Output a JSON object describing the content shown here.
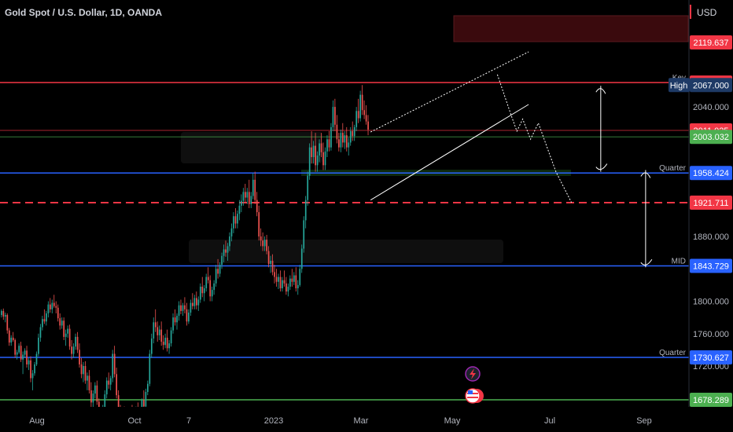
{
  "header": {
    "title": "Gold Spot / U.S. Dollar, 1D, OANDA",
    "currency": "USD"
  },
  "chart_data": {
    "type": "candlestick",
    "title": "Gold Spot / U.S. Dollar, 1D, OANDA",
    "ylim": [
      1660,
      2180
    ],
    "y_ticks": [
      {
        "value": 2040,
        "label": "2040.000"
      },
      {
        "value": 1880,
        "label": "1880.000"
      },
      {
        "value": 1800,
        "label": "1800.000"
      },
      {
        "value": 1760,
        "label": "1760.000"
      },
      {
        "value": 1720,
        "label": "1720.000"
      }
    ],
    "x_ticks": [
      "Aug",
      "Oct",
      "7",
      "2023",
      "Mar",
      "May",
      "Jul",
      "Sep"
    ],
    "levels": [
      {
        "price": 2070.038,
        "label": "Key",
        "badge": "2070.038",
        "color": "#f23645",
        "style": "solid"
      },
      {
        "price": 2011.025,
        "label": "",
        "badge": "2011.025",
        "color": "#f23645",
        "style": "thin"
      },
      {
        "price": 2003.032,
        "label": "",
        "badge": "2003.032",
        "color": "#4caf50",
        "style": "thin"
      },
      {
        "price": 1958.424,
        "label": "Quarter",
        "badge": "1958.424",
        "color": "#2962ff",
        "style": "solid"
      },
      {
        "price": 1921.711,
        "label": "",
        "badge": "1921.711",
        "color": "#f23645",
        "style": "dashed"
      },
      {
        "price": 1843.729,
        "label": "MID",
        "badge": "1843.729",
        "color": "#2962ff",
        "style": "solid"
      },
      {
        "price": 1730.627,
        "label": "Quarter",
        "badge": "1730.627",
        "color": "#2962ff",
        "style": "solid"
      },
      {
        "price": 1678.289,
        "label": "",
        "badge": "1678.289",
        "color": "#4caf50",
        "style": "solid"
      }
    ],
    "extra_badges": [
      {
        "price": 2119.637,
        "label": "2119.637",
        "color": "#f23645"
      },
      {
        "price": 2067.0,
        "label": "2067.000",
        "color": "#1e3a66",
        "tag": "High"
      }
    ],
    "colors": {
      "up": "#26a69a",
      "down": "#ef5350",
      "background": "#000000"
    },
    "candles": [
      [
        1783,
        1790,
        1780,
        1788
      ],
      [
        1788,
        1791,
        1777,
        1781
      ],
      [
        1781,
        1786,
        1774,
        1783
      ],
      [
        1783,
        1785,
        1760,
        1764
      ],
      [
        1764,
        1767,
        1745,
        1749
      ],
      [
        1749,
        1758,
        1745,
        1755
      ],
      [
        1755,
        1762,
        1750,
        1752
      ],
      [
        1752,
        1754,
        1730,
        1734
      ],
      [
        1734,
        1740,
        1728,
        1737
      ],
      [
        1737,
        1748,
        1735,
        1745
      ],
      [
        1745,
        1750,
        1725,
        1728
      ],
      [
        1728,
        1738,
        1710,
        1734
      ],
      [
        1734,
        1742,
        1730,
        1739
      ],
      [
        1739,
        1745,
        1718,
        1722
      ],
      [
        1722,
        1730,
        1715,
        1727
      ],
      [
        1727,
        1732,
        1700,
        1705
      ],
      [
        1705,
        1715,
        1690,
        1711
      ],
      [
        1711,
        1725,
        1708,
        1722
      ],
      [
        1722,
        1738,
        1720,
        1735
      ],
      [
        1735,
        1760,
        1732,
        1755
      ],
      [
        1755,
        1772,
        1750,
        1768
      ],
      [
        1768,
        1782,
        1764,
        1778
      ],
      [
        1778,
        1790,
        1772,
        1775
      ],
      [
        1775,
        1788,
        1770,
        1785
      ],
      [
        1785,
        1800,
        1780,
        1796
      ],
      [
        1796,
        1804,
        1786,
        1790
      ],
      [
        1790,
        1802,
        1785,
        1798
      ],
      [
        1798,
        1808,
        1792,
        1794
      ],
      [
        1794,
        1800,
        1785,
        1792
      ],
      [
        1792,
        1796,
        1775,
        1779
      ],
      [
        1779,
        1785,
        1765,
        1770
      ],
      [
        1770,
        1780,
        1766,
        1776
      ],
      [
        1776,
        1780,
        1752,
        1756
      ],
      [
        1756,
        1765,
        1745,
        1760
      ],
      [
        1760,
        1770,
        1755,
        1766
      ],
      [
        1766,
        1771,
        1740,
        1744
      ],
      [
        1744,
        1752,
        1728,
        1735
      ],
      [
        1735,
        1748,
        1730,
        1744
      ],
      [
        1744,
        1760,
        1740,
        1756
      ],
      [
        1756,
        1762,
        1736,
        1740
      ],
      [
        1740,
        1748,
        1718,
        1722
      ],
      [
        1722,
        1730,
        1705,
        1710
      ],
      [
        1710,
        1725,
        1700,
        1720
      ],
      [
        1720,
        1726,
        1698,
        1702
      ],
      [
        1702,
        1712,
        1690,
        1708
      ],
      [
        1708,
        1715,
        1686,
        1690
      ],
      [
        1690,
        1700,
        1668,
        1675
      ],
      [
        1675,
        1690,
        1660,
        1686
      ],
      [
        1686,
        1700,
        1680,
        1696
      ],
      [
        1696,
        1702,
        1672,
        1676
      ],
      [
        1676,
        1680,
        1660,
        1664
      ],
      [
        1664,
        1668,
        1655,
        1660
      ],
      [
        1660,
        1672,
        1650,
        1668
      ],
      [
        1668,
        1690,
        1665,
        1685
      ],
      [
        1685,
        1706,
        1680,
        1702
      ],
      [
        1702,
        1712,
        1692,
        1697
      ],
      [
        1697,
        1708,
        1690,
        1705
      ],
      [
        1705,
        1740,
        1700,
        1735
      ],
      [
        1735,
        1745,
        1706,
        1710
      ],
      [
        1710,
        1718,
        1680,
        1684
      ],
      [
        1684,
        1690,
        1660,
        1665
      ],
      [
        1665,
        1672,
        1648,
        1654
      ],
      [
        1654,
        1668,
        1640,
        1662
      ],
      [
        1662,
        1670,
        1650,
        1656
      ],
      [
        1656,
        1664,
        1640,
        1648
      ],
      [
        1648,
        1660,
        1642,
        1655
      ],
      [
        1655,
        1668,
        1650,
        1664
      ],
      [
        1664,
        1672,
        1650,
        1657
      ],
      [
        1657,
        1666,
        1645,
        1660
      ],
      [
        1660,
        1670,
        1655,
        1667
      ],
      [
        1667,
        1675,
        1650,
        1655
      ],
      [
        1655,
        1665,
        1645,
        1660
      ],
      [
        1660,
        1680,
        1658,
        1678
      ],
      [
        1678,
        1690,
        1666,
        1670
      ],
      [
        1670,
        1692,
        1668,
        1688
      ],
      [
        1688,
        1702,
        1684,
        1698
      ],
      [
        1698,
        1740,
        1695,
        1735
      ],
      [
        1735,
        1760,
        1730,
        1754
      ],
      [
        1754,
        1780,
        1748,
        1774
      ],
      [
        1774,
        1790,
        1762,
        1768
      ],
      [
        1768,
        1775,
        1750,
        1758
      ],
      [
        1758,
        1770,
        1752,
        1765
      ],
      [
        1765,
        1775,
        1745,
        1750
      ],
      [
        1750,
        1758,
        1740,
        1746
      ],
      [
        1746,
        1760,
        1742,
        1755
      ],
      [
        1755,
        1765,
        1738,
        1742
      ],
      [
        1742,
        1752,
        1735,
        1748
      ],
      [
        1748,
        1768,
        1744,
        1764
      ],
      [
        1764,
        1785,
        1760,
        1780
      ],
      [
        1780,
        1790,
        1770,
        1774
      ],
      [
        1774,
        1785,
        1765,
        1782
      ],
      [
        1782,
        1800,
        1776,
        1795
      ],
      [
        1795,
        1802,
        1784,
        1788
      ],
      [
        1788,
        1798,
        1782,
        1795
      ],
      [
        1795,
        1805,
        1785,
        1790
      ],
      [
        1790,
        1798,
        1770,
        1775
      ],
      [
        1775,
        1790,
        1772,
        1786
      ],
      [
        1786,
        1802,
        1782,
        1798
      ],
      [
        1798,
        1810,
        1790,
        1794
      ],
      [
        1794,
        1808,
        1790,
        1804
      ],
      [
        1804,
        1812,
        1790,
        1795
      ],
      [
        1795,
        1806,
        1788,
        1802
      ],
      [
        1802,
        1822,
        1798,
        1818
      ],
      [
        1818,
        1830,
        1805,
        1810
      ],
      [
        1810,
        1820,
        1800,
        1816
      ],
      [
        1816,
        1834,
        1812,
        1830
      ],
      [
        1830,
        1842,
        1822,
        1826
      ],
      [
        1826,
        1832,
        1800,
        1806
      ],
      [
        1806,
        1818,
        1800,
        1814
      ],
      [
        1814,
        1826,
        1808,
        1822
      ],
      [
        1822,
        1845,
        1818,
        1840
      ],
      [
        1840,
        1852,
        1828,
        1834
      ],
      [
        1834,
        1848,
        1830,
        1845
      ],
      [
        1845,
        1860,
        1840,
        1856
      ],
      [
        1856,
        1870,
        1848,
        1864
      ],
      [
        1864,
        1875,
        1855,
        1860
      ],
      [
        1860,
        1872,
        1850,
        1868
      ],
      [
        1868,
        1885,
        1862,
        1880
      ],
      [
        1880,
        1896,
        1874,
        1890
      ],
      [
        1890,
        1910,
        1884,
        1905
      ],
      [
        1905,
        1915,
        1890,
        1896
      ],
      [
        1896,
        1912,
        1890,
        1908
      ],
      [
        1908,
        1925,
        1900,
        1918
      ],
      [
        1918,
        1932,
        1910,
        1924
      ],
      [
        1924,
        1940,
        1918,
        1935
      ],
      [
        1935,
        1945,
        1922,
        1928
      ],
      [
        1928,
        1940,
        1920,
        1935
      ],
      [
        1935,
        1950,
        1915,
        1920
      ],
      [
        1920,
        1935,
        1915,
        1930
      ],
      [
        1930,
        1958,
        1926,
        1950
      ],
      [
        1950,
        1960,
        1920,
        1925
      ],
      [
        1925,
        1935,
        1905,
        1910
      ],
      [
        1910,
        1918,
        1875,
        1880
      ],
      [
        1880,
        1890,
        1868,
        1875
      ],
      [
        1875,
        1885,
        1862,
        1868
      ],
      [
        1868,
        1880,
        1862,
        1876
      ],
      [
        1876,
        1882,
        1858,
        1862
      ],
      [
        1862,
        1868,
        1842,
        1846
      ],
      [
        1846,
        1856,
        1835,
        1850
      ],
      [
        1850,
        1858,
        1832,
        1836
      ],
      [
        1836,
        1845,
        1822,
        1830
      ],
      [
        1830,
        1840,
        1818,
        1824
      ],
      [
        1824,
        1834,
        1815,
        1830
      ],
      [
        1830,
        1838,
        1812,
        1816
      ],
      [
        1816,
        1830,
        1812,
        1826
      ],
      [
        1826,
        1838,
        1818,
        1822
      ],
      [
        1822,
        1830,
        1808,
        1812
      ],
      [
        1812,
        1822,
        1806,
        1818
      ],
      [
        1818,
        1832,
        1814,
        1828
      ],
      [
        1828,
        1840,
        1818,
        1824
      ],
      [
        1824,
        1836,
        1820,
        1832
      ],
      [
        1832,
        1842,
        1812,
        1816
      ],
      [
        1816,
        1826,
        1808,
        1820
      ],
      [
        1820,
        1845,
        1818,
        1840
      ],
      [
        1840,
        1870,
        1835,
        1865
      ],
      [
        1865,
        1905,
        1860,
        1900
      ],
      [
        1900,
        1930,
        1890,
        1925
      ],
      [
        1925,
        1960,
        1918,
        1955
      ],
      [
        1955,
        1995,
        1950,
        1990
      ],
      [
        1990,
        2010,
        1970,
        1978
      ],
      [
        1978,
        1998,
        1970,
        1992
      ],
      [
        1992,
        2008,
        1960,
        1968
      ],
      [
        1968,
        1985,
        1960,
        1980
      ],
      [
        1980,
        2000,
        1972,
        1995
      ],
      [
        1995,
        2008,
        1978,
        1984
      ],
      [
        1984,
        1996,
        1962,
        1968
      ],
      [
        1968,
        1990,
        1962,
        1985
      ],
      [
        1985,
        2005,
        1978,
        2000
      ],
      [
        2000,
        2010,
        1985,
        1990
      ],
      [
        1990,
        2020,
        1986,
        2015
      ],
      [
        2015,
        2048,
        2010,
        2040
      ],
      [
        2040,
        2050,
        2010,
        2018
      ],
      [
        2018,
        2030,
        1995,
        2000
      ],
      [
        2000,
        2008,
        1985,
        1990
      ],
      [
        1990,
        2012,
        1984,
        2008
      ],
      [
        2008,
        2020,
        1990,
        1996
      ],
      [
        1996,
        2010,
        1988,
        2005
      ],
      [
        2005,
        2015,
        1985,
        1990
      ],
      [
        1990,
        2002,
        1980,
        1996
      ],
      [
        1996,
        2015,
        1992,
        2010
      ],
      [
        2010,
        2022,
        1998,
        2004
      ],
      [
        2004,
        2018,
        1998,
        2015
      ],
      [
        2015,
        2040,
        2010,
        2035
      ],
      [
        2035,
        2050,
        2020,
        2026
      ],
      [
        2026,
        2060,
        2022,
        2055
      ],
      [
        2055,
        2067,
        2030,
        2036
      ],
      [
        2036,
        2048,
        2025,
        2030
      ],
      [
        2030,
        2042,
        2018,
        2022
      ],
      [
        2022,
        2030,
        2005,
        2012
      ]
    ],
    "channel": {
      "upper": [
        [
          1990,
          2009
        ],
        [
          2071,
          2108
        ]
      ],
      "lower": [
        [
          1990,
          1925
        ],
        [
          2071,
          2043
        ]
      ]
    },
    "projection": [
      [
        2055,
        2080
      ],
      [
        2062,
        2030
      ],
      [
        2065,
        2010
      ],
      [
        2068,
        2025
      ],
      [
        2072,
        2000
      ],
      [
        2076,
        2020
      ],
      [
        2085,
        1960
      ],
      [
        2093,
        1922
      ]
    ],
    "arrows": [
      {
        "x": 2108,
        "from": 2066,
        "to": 1960
      },
      {
        "x": 2131,
        "from": 1962,
        "to": 1842
      }
    ]
  }
}
